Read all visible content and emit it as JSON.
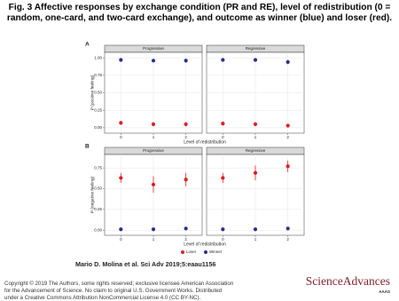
{
  "figure_title": "Fig. 3 Affective responses by exchange condition (PR and RE), level of redistribution (0 = random, one-card, and two-card exchange), and outcome as winner (blue) and loser (red).",
  "panels": [
    {
      "label": "A",
      "ylabel": "P (positive feeling)",
      "xlabel": "Level of redistribution"
    },
    {
      "label": "B",
      "ylabel": "P (negative feeling)",
      "xlabel": "Level of redistribution"
    }
  ],
  "chart_data": [
    {
      "type": "dot",
      "title": "Progressive",
      "categories": [
        "0",
        "1",
        "2"
      ],
      "ylim": [
        -0.04,
        1.04
      ],
      "yticks": [
        {
          "value": 0,
          "label": "0.00"
        },
        {
          "value": 0.25,
          "label": "0.25"
        },
        {
          "value": 0.5,
          "label": "0.50"
        },
        {
          "value": 0.75,
          "label": "0.75"
        },
        {
          "value": 1,
          "label": "1.00"
        }
      ],
      "series": [
        {
          "name": "Loser",
          "color": "#e41a1c",
          "values": [
            0.07,
            0.05,
            0.05
          ],
          "errors": [
            0.03,
            0.03,
            0.03
          ]
        },
        {
          "name": "Winner",
          "color": "#2b2b8c",
          "values": [
            0.97,
            0.96,
            0.96
          ],
          "errors": [
            0.02,
            0.02,
            0.03
          ]
        }
      ]
    },
    {
      "type": "dot",
      "title": "Regressive",
      "categories": [
        "0",
        "1",
        "2"
      ],
      "ylim": [
        -0.04,
        1.04
      ],
      "yticks": [
        {
          "value": 0,
          "label": "0.00"
        },
        {
          "value": 0.25,
          "label": "0.25"
        },
        {
          "value": 0.5,
          "label": "0.50"
        },
        {
          "value": 0.75,
          "label": "0.75"
        },
        {
          "value": 1,
          "label": "1.00"
        }
      ],
      "series": [
        {
          "name": "Loser",
          "color": "#e41a1c",
          "values": [
            0.06,
            0.05,
            0.03
          ],
          "errors": [
            0.03,
            0.03,
            0.02
          ]
        },
        {
          "name": "Winner",
          "color": "#2b2b8c",
          "values": [
            0.97,
            0.97,
            0.94
          ],
          "errors": [
            0.02,
            0.02,
            0.03
          ]
        }
      ]
    },
    {
      "type": "dot",
      "title": "Progressive",
      "categories": [
        "0",
        "1",
        "2"
      ],
      "ylim": [
        -0.03,
        0.88
      ],
      "yticks": [
        {
          "value": 0,
          "label": "0.00"
        },
        {
          "value": 0.25,
          "label": "0.25"
        },
        {
          "value": 0.5,
          "label": "0.50"
        },
        {
          "value": 0.75,
          "label": "0.75"
        }
      ],
      "series": [
        {
          "name": "Loser",
          "color": "#e41a1c",
          "values": [
            0.63,
            0.55,
            0.61
          ],
          "errors": [
            0.06,
            0.1,
            0.08
          ]
        },
        {
          "name": "Winner",
          "color": "#2b2b8c",
          "values": [
            0.01,
            0.01,
            0.02
          ],
          "errors": [
            0.01,
            0.01,
            0.01
          ]
        }
      ]
    },
    {
      "type": "dot",
      "title": "Regressive",
      "categories": [
        "0",
        "1",
        "2"
      ],
      "ylim": [
        -0.03,
        0.88
      ],
      "yticks": [
        {
          "value": 0,
          "label": "0.00"
        },
        {
          "value": 0.25,
          "label": "0.25"
        },
        {
          "value": 0.5,
          "label": "0.50"
        },
        {
          "value": 0.75,
          "label": "0.75"
        }
      ],
      "series": [
        {
          "name": "Loser",
          "color": "#e41a1c",
          "values": [
            0.63,
            0.69,
            0.77
          ],
          "errors": [
            0.06,
            0.09,
            0.07
          ]
        },
        {
          "name": "Winner",
          "color": "#2b2b8c",
          "values": [
            0.01,
            0.01,
            0.02
          ],
          "errors": [
            0.01,
            0.01,
            0.01
          ]
        }
      ]
    }
  ],
  "citation": "Mario D. Molina et al. Sci Adv 2019;5:eaau1156",
  "copyright": [
    "Copyright © 2019 The Authors, some rights reserved; exclusive licensee American Association",
    "for the Advancement of Science. No claim to original U.S. Government Works. Distributed",
    "under a Creative Commons Attribution NonCommercial License 4.0 (CC BY-NC)."
  ],
  "logo": {
    "name": "ScienceAdvances",
    "sub": "AAAS"
  }
}
